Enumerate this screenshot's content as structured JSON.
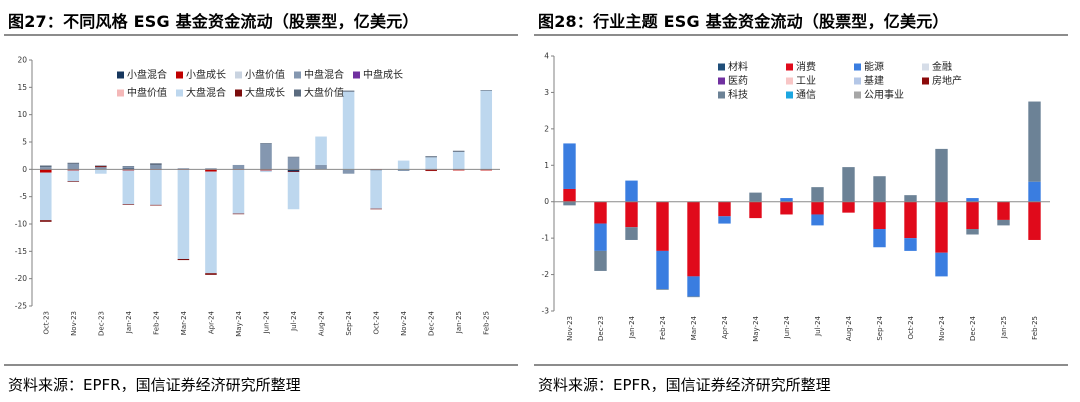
{
  "left": {
    "title": "图27：不同风格 ESG 基金资金流动（股票型，亿美元）",
    "source": "资料来源：EPFR，国信证券经济研究所整理"
  },
  "right": {
    "title": "图28：行业主题 ESG 基金资金流动（股票型，亿美元）",
    "source": "资料来源：EPFR，国信证券经济研究所整理"
  },
  "chart_data": [
    {
      "type": "bar",
      "stacked": true,
      "title": "不同风格 ESG 基金资金流动（股票型，亿美元）",
      "categories": [
        "Oct-23",
        "Nov-23",
        "Dec-23",
        "Jan-24",
        "Feb-24",
        "Mar-24",
        "Apr-24",
        "May-24",
        "Jun-24",
        "Jul-24",
        "Aug-24",
        "Sep-24",
        "Oct-24",
        "Nov-24",
        "Dec-24",
        "Jan-25",
        "Feb-25"
      ],
      "ylim": [
        -25,
        20
      ],
      "yticks": [
        -25,
        -20,
        -15,
        -10,
        -5,
        0,
        5,
        10,
        15,
        20
      ],
      "legend_position": "top",
      "series": [
        {
          "name": "小盘混合",
          "color": "#17375E",
          "values": [
            0,
            0,
            0,
            0.2,
            0,
            0,
            0,
            0,
            0,
            -0.4,
            0,
            0,
            0,
            0,
            0,
            0,
            0
          ]
        },
        {
          "name": "小盘成长",
          "color": "#C00000",
          "values": [
            -0.6,
            -0.2,
            0,
            -0.2,
            -0.1,
            -0.1,
            -0.4,
            -0.1,
            -0.2,
            -0.1,
            0,
            0,
            -0.1,
            0,
            -0.2,
            -0.2,
            -0.2
          ]
        },
        {
          "name": "小盘价值",
          "color": "#C9D3E0",
          "values": [
            0,
            0,
            0,
            0,
            0,
            0,
            0,
            0,
            0,
            0,
            0,
            0,
            0,
            0,
            0,
            0,
            0
          ]
        },
        {
          "name": "中盘混合",
          "color": "#8497B0",
          "values": [
            0.4,
            1.0,
            0.4,
            0.3,
            0.8,
            0.2,
            0.2,
            0.8,
            4.7,
            2.2,
            0.8,
            -0.8,
            -0.1,
            -0.3,
            0,
            0,
            0
          ]
        },
        {
          "name": "中盘成长",
          "color": "#7030A0",
          "values": [
            0,
            0,
            0,
            0,
            0,
            0,
            0,
            0,
            0,
            0,
            0,
            0,
            0,
            0,
            0,
            0,
            0
          ]
        },
        {
          "name": "中盘价值",
          "color": "#F4B8B8",
          "values": [
            0,
            0,
            0,
            0,
            0,
            0,
            0,
            0,
            0,
            0,
            0,
            0,
            0,
            0,
            0,
            0,
            0
          ]
        },
        {
          "name": "大盘混合",
          "color": "#BDD7EE",
          "values": [
            -8.7,
            -2.0,
            -0.8,
            -6.2,
            -6.4,
            -16.3,
            -18.6,
            -8.0,
            -0.3,
            -6.8,
            5.2,
            14.2,
            -7.0,
            1.6,
            2.2,
            3.2,
            14.4
          ]
        },
        {
          "name": "大盘成长",
          "color": "#7B0C0C",
          "values": [
            -0.3,
            -0.1,
            0.2,
            -0.1,
            -0.1,
            -0.2,
            -0.3,
            -0.1,
            0,
            0,
            0,
            0,
            -0.1,
            0,
            -0.1,
            0,
            0
          ]
        },
        {
          "name": "大盘价值",
          "color": "#5B6B7F",
          "values": [
            0.3,
            0.2,
            0.1,
            0.1,
            0.3,
            0,
            0,
            0,
            0.1,
            0.1,
            0,
            0.2,
            0,
            0,
            0.2,
            0.2,
            0.1
          ]
        }
      ]
    },
    {
      "type": "bar",
      "stacked": true,
      "title": "行业主题 ESG 基金资金流动（股票型，亿美元）",
      "categories": [
        "Nov-23",
        "Dec-23",
        "Jan-24",
        "Feb-24",
        "Mar-24",
        "Apr-24",
        "May-24",
        "Jun-24",
        "Jul-24",
        "Aug-24",
        "Sep-24",
        "Oct-24",
        "Nov-24",
        "Dec-24",
        "Jan-25",
        "Feb-25"
      ],
      "ylim": [
        -3,
        4
      ],
      "yticks": [
        -3,
        -2,
        -1,
        0,
        1,
        2,
        3,
        4
      ],
      "legend_position": "top",
      "series": [
        {
          "name": "材料",
          "color": "#1F4E79",
          "values": [
            0,
            0,
            0,
            0,
            0,
            0,
            0,
            0,
            0,
            0,
            0,
            0,
            0,
            0,
            0,
            0
          ]
        },
        {
          "name": "消费",
          "color": "#E00A1B",
          "values": [
            0.35,
            -0.6,
            -0.7,
            -1.35,
            -2.05,
            -0.4,
            -0.45,
            -0.35,
            -0.35,
            -0.3,
            -0.75,
            -1.0,
            -1.4,
            -0.75,
            -0.5,
            -1.05
          ]
        },
        {
          "name": "能源",
          "color": "#3A7DE0",
          "values": [
            1.25,
            -0.75,
            0.58,
            -1.05,
            -0.55,
            -0.2,
            0,
            0.1,
            -0.3,
            0,
            -0.5,
            -0.35,
            -0.65,
            0.1,
            0,
            0.55
          ]
        },
        {
          "name": "金融",
          "color": "#D6DDE8",
          "values": [
            0,
            0,
            0,
            0,
            0,
            0,
            0,
            0,
            0,
            0,
            0,
            0,
            0,
            0,
            0,
            0
          ]
        },
        {
          "name": "医药",
          "color": "#7030A0",
          "values": [
            0,
            0,
            0,
            0,
            0,
            0,
            0,
            0,
            0,
            0,
            0,
            0,
            0,
            0,
            0,
            0
          ]
        },
        {
          "name": "工业",
          "color": "#F8C6C6",
          "values": [
            0,
            0,
            0,
            0,
            0,
            0,
            0,
            0,
            0,
            0,
            0,
            0,
            0,
            0,
            0,
            0
          ]
        },
        {
          "name": "基建",
          "color": "#B4C7E7",
          "values": [
            0,
            0,
            0,
            0,
            0,
            0,
            0,
            0,
            0,
            0,
            0,
            0,
            0,
            0,
            0,
            0
          ]
        },
        {
          "name": "房地产",
          "color": "#8B0A0A",
          "values": [
            0,
            0,
            0,
            0,
            0,
            0,
            0,
            0,
            0,
            0,
            0,
            0,
            0,
            0,
            0,
            0
          ]
        },
        {
          "name": "科技",
          "color": "#6C8296",
          "values": [
            -0.1,
            -0.55,
            -0.35,
            -0.02,
            -0.02,
            0,
            0.25,
            0,
            0.4,
            0.95,
            0.7,
            0.18,
            1.45,
            -0.15,
            -0.15,
            2.2
          ]
        },
        {
          "name": "通信",
          "color": "#1CA6E0",
          "values": [
            0,
            0,
            0,
            0,
            0,
            0,
            0,
            0,
            0,
            0,
            0,
            0,
            0,
            0,
            0,
            0
          ]
        },
        {
          "name": "公用事业",
          "color": "#A6A6A6",
          "values": [
            0,
            0,
            0,
            0,
            0,
            0,
            0,
            0,
            0,
            0,
            0,
            0,
            0,
            0,
            0,
            0
          ]
        }
      ]
    }
  ]
}
